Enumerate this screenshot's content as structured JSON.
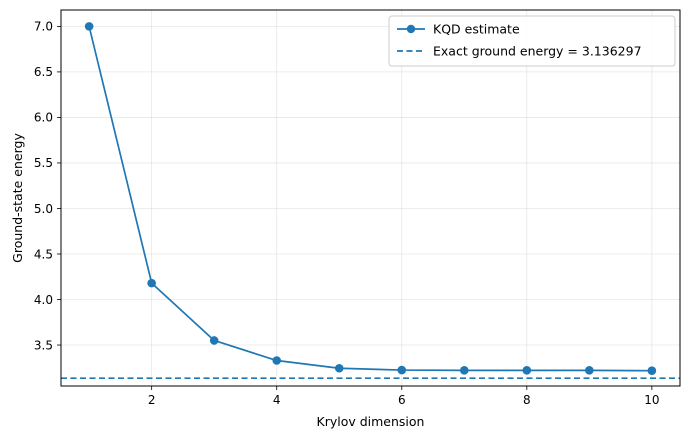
{
  "chart_data": {
    "type": "line",
    "xlabel": "Krylov dimension",
    "ylabel": "Ground-state energy",
    "xlim": [
      0.55,
      10.45
    ],
    "ylim": [
      3.05,
      7.18
    ],
    "xticks": [
      2,
      4,
      6,
      8,
      10
    ],
    "yticks": [
      3.5,
      4.0,
      4.5,
      5.0,
      5.5,
      6.0,
      6.5,
      7.0
    ],
    "xtick_labels": [
      "2",
      "4",
      "6",
      "8",
      "10"
    ],
    "ytick_labels": [
      "3.5",
      "4.0",
      "4.5",
      "5.0",
      "5.5",
      "6.0",
      "6.5",
      "7.0"
    ],
    "grid": true,
    "legend_position": "top-right",
    "series": [
      {
        "name": "KQD estimate",
        "color": "#1f77b4",
        "marker": "circle",
        "x": [
          1,
          2,
          3,
          4,
          5,
          6,
          7,
          8,
          9,
          10
        ],
        "y": [
          7.0,
          4.18,
          3.55,
          3.33,
          3.245,
          3.225,
          3.222,
          3.222,
          3.222,
          3.218
        ]
      }
    ],
    "reference_lines": [
      {
        "name": "Exact ground energy = 3.136297",
        "value": 3.136297,
        "orientation": "horizontal",
        "style": "dashed",
        "color": "#1f77b4"
      }
    ]
  }
}
